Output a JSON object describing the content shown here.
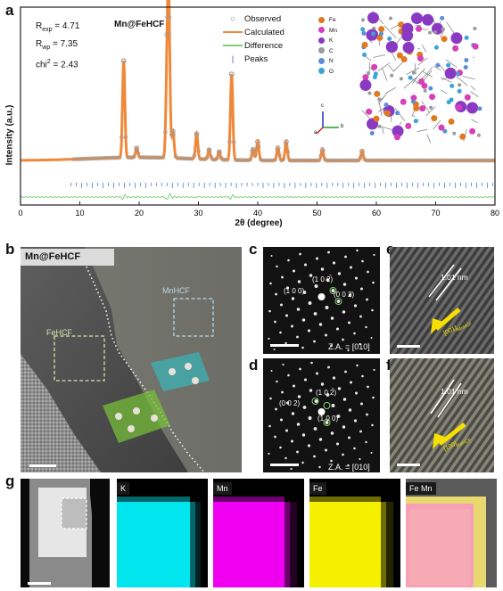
{
  "panel_labels": {
    "a": "a",
    "b": "b",
    "c": "c",
    "d": "d",
    "e": "e",
    "f": "f",
    "g": "g"
  },
  "panel_a": {
    "sample": "Mn@FeHCF",
    "stats": [
      {
        "key": "R",
        "sub": "exp",
        "value": " = 4.71"
      },
      {
        "key": "R",
        "sub": "wp",
        "value": " = 7.35"
      },
      {
        "key": "chi",
        "sup": "2",
        "value": " = 2.43"
      }
    ],
    "legend": [
      "Observed",
      "Calculated",
      "Difference",
      "Peaks"
    ],
    "atoms": [
      {
        "name": "Fe",
        "color": "#e07a1f"
      },
      {
        "name": "Mn",
        "color": "#d63fb8"
      },
      {
        "name": "K",
        "color": "#8a3ac2"
      },
      {
        "name": "C",
        "color": "#9a9a9a"
      },
      {
        "name": "N",
        "color": "#5a8fd8"
      },
      {
        "name": "O",
        "color": "#3aa2d8"
      }
    ],
    "axes_letters": {
      "c": "c",
      "a": "a",
      "b": "b"
    }
  },
  "chart_data": {
    "type": "line",
    "xlabel": "2θ (degree)",
    "ylabel": "Intensity (a.u.)",
    "xlim": [
      0,
      80
    ],
    "xticks": [
      "0",
      "10",
      "20",
      "30",
      "40",
      "50",
      "60",
      "70",
      "80"
    ],
    "series": [
      {
        "name": "Observed",
        "color": "#9a9a9a",
        "peaks": [
          [
            17.4,
            0.62
          ],
          [
            19.6,
            0.06
          ],
          [
            24.7,
            0.49
          ],
          [
            25.0,
            0.95
          ],
          [
            25.7,
            0.17
          ],
          [
            29.7,
            0.16
          ],
          [
            31.8,
            0.06
          ],
          [
            33.5,
            0.05
          ],
          [
            35.6,
            0.55
          ],
          [
            39.2,
            0.07
          ],
          [
            40.0,
            0.12
          ],
          [
            43.4,
            0.08
          ],
          [
            44.8,
            0.12
          ],
          [
            50.9,
            0.07
          ],
          [
            57.6,
            0.06
          ]
        ]
      },
      {
        "name": "Calculated",
        "color": "#f0883a"
      },
      {
        "name": "Difference",
        "color": "#7ed17a"
      },
      {
        "name": "Peaks",
        "color": "#4a5fc8"
      }
    ],
    "grid": false
  },
  "panel_b": {
    "title": "Mn@FeHCF",
    "region1": "FeHCF",
    "region2": "MnHCF"
  },
  "panel_c": {
    "spots": [
      "(1 0 0)",
      "(1 0 2)",
      "(0 0 2)"
    ],
    "bars": [
      "-",
      "-"
    ],
    "za": "Z.A. = [010]"
  },
  "panel_d": {
    "spots": [
      "(0 0 2)",
      "(1 0 2)",
      "(1 0 0)"
    ],
    "bars": [
      "-",
      "-"
    ],
    "za": "Z.A. = [010]"
  },
  "panel_e": {
    "spacing": "1.01 nm",
    "dir": "[001]",
    "dir_sub": "MnHCF"
  },
  "panel_f": {
    "spacing": "1.01 nm",
    "dir": "[100]",
    "dir_sub": "FeHCF"
  },
  "panel_g": {
    "maps": [
      "K",
      "Mn",
      "Fe",
      "Fe Mn"
    ],
    "colors": [
      "#00e5ee",
      "#f000f0",
      "#f5f000",
      "#f7a0b8"
    ]
  }
}
